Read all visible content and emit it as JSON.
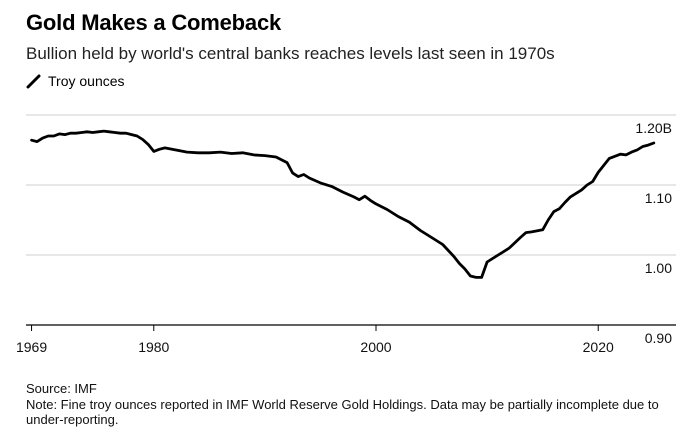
{
  "chart_data": {
    "type": "line",
    "title": "Gold Makes a Comeback",
    "subtitle": "Bullion held by world's central banks reaches levels last seen in 1970s",
    "legend": [
      "Troy ounces"
    ],
    "xlabel": "",
    "ylabel": "",
    "xlim": [
      1968.5,
      2027
    ],
    "ylim": [
      0.9,
      1.2
    ],
    "x_ticks": [
      1969,
      1980,
      2000,
      2020
    ],
    "x_tick_labels": [
      "1969",
      "1980",
      "2000",
      "2020"
    ],
    "y_ticks": [
      0.9,
      1.0,
      1.1,
      1.2
    ],
    "y_tick_labels": [
      "0.90",
      "1.00",
      "1.10",
      "1.20B"
    ],
    "series": [
      {
        "name": "Troy ounces",
        "x": [
          1969,
          1969.5,
          1970,
          1970.5,
          1971,
          1971.5,
          1972,
          1972.5,
          1973,
          1973.5,
          1974,
          1974.5,
          1975,
          1975.5,
          1976,
          1976.5,
          1977,
          1977.5,
          1978,
          1978.5,
          1979,
          1979.5,
          1980,
          1980.5,
          1981,
          1982,
          1983,
          1984,
          1985,
          1986,
          1987,
          1988,
          1989,
          1990,
          1991,
          1992,
          1992.5,
          1993,
          1993.5,
          1994,
          1995,
          1996,
          1997,
          1998,
          1998.5,
          1999,
          1999.5,
          2000,
          2001,
          2002,
          2003,
          2004,
          2005,
          2006,
          2007,
          2007.5,
          2008,
          2008.5,
          2009,
          2009.5,
          2010,
          2011,
          2012,
          2013,
          2013.5,
          2014,
          2015,
          2015.5,
          2016,
          2016.5,
          2017,
          2017.5,
          2018,
          2018.5,
          2019,
          2019.5,
          2020,
          2021,
          2022,
          2022.5,
          2023,
          2023.5,
          2024,
          2024.5,
          2025
        ],
        "values": [
          1.164,
          1.162,
          1.167,
          1.17,
          1.17,
          1.173,
          1.172,
          1.174,
          1.174,
          1.175,
          1.176,
          1.175,
          1.176,
          1.177,
          1.176,
          1.175,
          1.174,
          1.174,
          1.172,
          1.17,
          1.165,
          1.158,
          1.148,
          1.151,
          1.153,
          1.15,
          1.147,
          1.146,
          1.146,
          1.147,
          1.145,
          1.146,
          1.143,
          1.142,
          1.14,
          1.132,
          1.117,
          1.112,
          1.115,
          1.11,
          1.103,
          1.098,
          1.09,
          1.083,
          1.079,
          1.084,
          1.078,
          1.073,
          1.065,
          1.055,
          1.047,
          1.035,
          1.025,
          1.015,
          0.998,
          0.988,
          0.98,
          0.97,
          0.968,
          0.968,
          0.99,
          1.0,
          1.01,
          1.025,
          1.032,
          1.033,
          1.036,
          1.05,
          1.062,
          1.066,
          1.075,
          1.083,
          1.088,
          1.093,
          1.1,
          1.105,
          1.118,
          1.138,
          1.144,
          1.143,
          1.147,
          1.15,
          1.155,
          1.157,
          1.16
        ]
      }
    ],
    "grid": true,
    "color": "#000000"
  },
  "footer": {
    "source": "Source: IMF",
    "note": "Note: Fine troy ounces reported in IMF World Reserve Gold Holdings. Data may be partially incomplete due to under-reporting."
  }
}
